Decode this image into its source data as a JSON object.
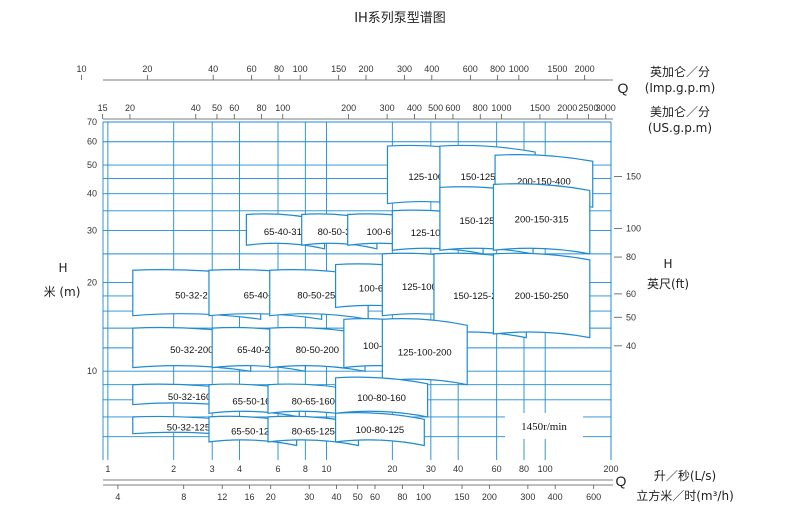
{
  "chart_data": {
    "type": "scatter",
    "title": "IH系列泵型谱图",
    "speed": "1450r/min",
    "ylabel_metric": "米 (m)",
    "ylabel_metric_sym": "H",
    "ylabel_imperial": "英尺(ft)",
    "ylabel_imperial_sym": "H",
    "q_symbol": "Q",
    "axis_top1_label": "英加仑／分",
    "axis_top1_unit": "(Imp.g.p.m)",
    "axis_top2_label": "美加仑／分",
    "axis_top2_unit": "(US.g.p.m)",
    "axis_bot1_label": "升／秒(L/s)",
    "axis_bot2_label": "立方米／时(m³/h)",
    "xlim_ls": [
      0.95,
      200
    ],
    "ylim_m": [
      5,
      70
    ],
    "grid": true,
    "h_ticks_m": [
      10,
      20,
      30,
      40,
      50,
      60,
      70
    ],
    "h_ticks_ft": [
      40,
      50,
      60,
      80,
      100,
      150
    ],
    "top_imp_ticks": [
      10,
      20,
      40,
      60,
      80,
      100,
      150,
      200,
      300,
      400,
      600,
      800,
      1000,
      1500,
      2000
    ],
    "top_us_ticks": [
      15,
      20,
      40,
      50,
      60,
      80,
      100,
      200,
      300,
      400,
      500,
      600,
      800,
      1000,
      1500,
      2000,
      2500,
      3000
    ],
    "bottom_ls_ticks": [
      1,
      2,
      3,
      4,
      6,
      8,
      10,
      20,
      30,
      40,
      60,
      80,
      100,
      200
    ],
    "bottom_m3h_ticks": [
      4,
      8,
      12,
      16,
      20,
      30,
      40,
      50,
      60,
      80,
      100,
      150,
      200,
      300,
      400,
      600
    ],
    "pumps": [
      {
        "model": "125-100-400",
        "q": [
          19,
          52
        ],
        "h": [
          36,
          58
        ]
      },
      {
        "model": "150-125-400",
        "q": [
          33,
          90
        ],
        "h": [
          36,
          58
        ]
      },
      {
        "model": "200-150-400",
        "q": [
          59,
          165
        ],
        "h": [
          36,
          54
        ]
      },
      {
        "model": "65-40-315",
        "q": [
          4.3,
          9.8
        ],
        "h": [
          26,
          34
        ]
      },
      {
        "model": "80-50-315",
        "q": [
          7.7,
          17
        ],
        "h": [
          26,
          34
        ]
      },
      {
        "model": "100-65-315",
        "q": [
          12.5,
          31
        ],
        "h": [
          26,
          34
        ]
      },
      {
        "model": "125-100-315",
        "q": [
          20,
          52
        ],
        "h": [
          25,
          35
        ]
      },
      {
        "model": "150-125-315",
        "q": [
          33,
          88
        ],
        "h": [
          25,
          42
        ]
      },
      {
        "model": "200-150-315",
        "q": [
          58,
          160
        ],
        "h": [
          25,
          43
        ]
      },
      {
        "model": "50-32-250",
        "q": [
          1.3,
          5
        ],
        "h": [
          15,
          22
        ]
      },
      {
        "model": "65-40-250",
        "q": [
          2.9,
          9.5
        ],
        "h": [
          15,
          22
        ]
      },
      {
        "model": "80-50-250",
        "q": [
          5.5,
          15.5
        ],
        "h": [
          15,
          22
        ]
      },
      {
        "model": "100-65-250",
        "q": [
          11,
          30
        ],
        "h": [
          16,
          23
        ]
      },
      {
        "model": "125-100-250",
        "q": [
          18,
          48
        ],
        "h": [
          15,
          25
        ]
      },
      {
        "model": "150-125-250",
        "q": [
          31,
          82
        ],
        "h": [
          13,
          25
        ]
      },
      {
        "model": "200-150-250",
        "q": [
          58,
          160
        ],
        "h": [
          13,
          25
        ]
      },
      {
        "model": "50-32-200",
        "q": [
          1.3,
          4.5
        ],
        "h": [
          10,
          14
        ]
      },
      {
        "model": "65-40-200",
        "q": [
          3,
          8
        ],
        "h": [
          10,
          14
        ]
      },
      {
        "model": "80-50-200",
        "q": [
          5.5,
          15
        ],
        "h": [
          10,
          14
        ]
      },
      {
        "model": "100-65-200",
        "q": [
          12,
          30
        ],
        "h": [
          10,
          15
        ]
      },
      {
        "model": "125-100-200",
        "q": [
          18,
          44
        ],
        "h": [
          9,
          15
        ]
      },
      {
        "model": "50-32-160",
        "q": [
          1.3,
          4.3
        ],
        "h": [
          7.5,
          9
        ]
      },
      {
        "model": "65-50-160",
        "q": [
          2.9,
          7.5
        ],
        "h": [
          7,
          9
        ]
      },
      {
        "model": "80-65-160",
        "q": [
          5.4,
          14
        ],
        "h": [
          7,
          9
        ]
      },
      {
        "model": "100-80-160",
        "q": [
          11,
          29
        ],
        "h": [
          7,
          9.5
        ]
      },
      {
        "model": "50-32-125",
        "q": [
          1.3,
          4.2
        ],
        "h": [
          6,
          7
        ]
      },
      {
        "model": "65-50-125",
        "q": [
          2.9,
          7.3
        ],
        "h": [
          5.6,
          7
        ]
      },
      {
        "model": "80-65-125",
        "q": [
          5.4,
          14
        ],
        "h": [
          5.6,
          7
        ]
      },
      {
        "model": "100-80-125",
        "q": [
          11,
          28
        ],
        "h": [
          5.6,
          7.2
        ]
      }
    ]
  }
}
